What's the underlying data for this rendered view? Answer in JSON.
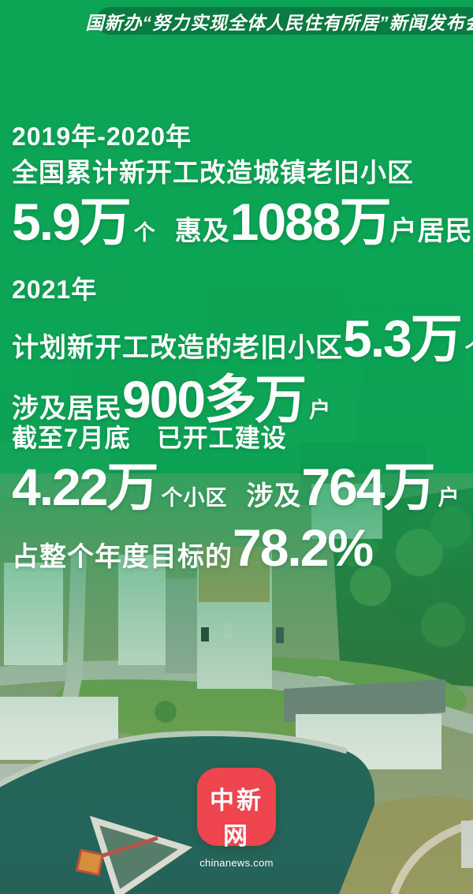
{
  "header": {
    "title": "国新办“努力实现全体人民住有所居”新闻发布会"
  },
  "sections": [
    {
      "heading": "2019年-2020年",
      "subheading": "全国累计新开工改造城镇老旧小区",
      "lines": [
        {
          "segments": [
            {
              "text": "5.9万",
              "size": "xl"
            },
            {
              "text": "个",
              "size": "sm"
            },
            {
              "text": "惠及",
              "size": "md",
              "gap": true
            },
            {
              "text": "1088万",
              "size": "xl"
            },
            {
              "text": "户居民",
              "size": "md"
            }
          ]
        }
      ]
    },
    {
      "heading": "2021年",
      "subheading": "",
      "lines": [
        {
          "segments": [
            {
              "text": "计划新开工改造的老旧小区",
              "size": "md"
            },
            {
              "text": "5.3万",
              "size": "xl"
            },
            {
              "text": "个",
              "size": "sm"
            }
          ]
        },
        {
          "segments": [
            {
              "text": "涉及居民",
              "size": "md"
            },
            {
              "text": "900多万",
              "size": "xl"
            },
            {
              "text": "户",
              "size": "sm"
            }
          ]
        }
      ]
    },
    {
      "heading": "截至7月底　已开工建设",
      "subheading": "",
      "lines": [
        {
          "segments": [
            {
              "text": "4.22万",
              "size": "xl"
            },
            {
              "text": "个小区",
              "size": "sm"
            },
            {
              "text": "涉及",
              "size": "md",
              "gap": true
            },
            {
              "text": "764万",
              "size": "xl"
            },
            {
              "text": "户",
              "size": "sm"
            }
          ]
        },
        {
          "segments": [
            {
              "text": "占整个年度目标的",
              "size": "md"
            },
            {
              "text": "78.2%",
              "size": "xl"
            }
          ]
        }
      ]
    }
  ],
  "logo": {
    "title": "中新网",
    "domain": "chinanews.com"
  },
  "colors": {
    "background_green": "#0ca455",
    "banner_green": "#0a7c41",
    "logo_red": "#ee454e",
    "text": "#ffffff",
    "pond_teal": "#25635a"
  }
}
